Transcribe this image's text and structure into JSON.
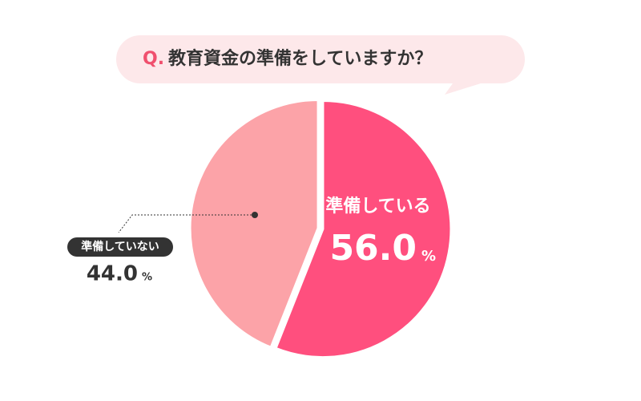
{
  "chart_data": {
    "type": "pie",
    "title_prefix": "Q.",
    "title": "教育資金の準備をしていますか？",
    "categories": [
      "準備している",
      "準備していない"
    ],
    "values": [
      56.0,
      44.0
    ],
    "value_labels": [
      "56.0",
      "44.0"
    ],
    "unit": "%",
    "colors": [
      "#ff4f7e",
      "#fca3a8"
    ]
  }
}
